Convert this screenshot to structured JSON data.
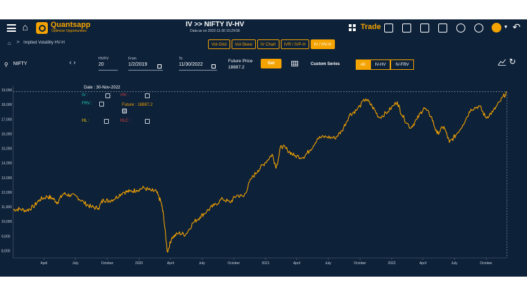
{
  "header": {
    "brand": "Quantsapp",
    "tagline": "Optimize Opportunities",
    "title": "IV >> NIFTY IV-HV",
    "subtitle": "Data as on 2022-11-30 15:29:58",
    "trade_label": "Trade"
  },
  "breadcrumb": {
    "label": "Implied Volatility HV-H"
  },
  "tabs": [
    "Vol-Grid",
    "Vol-Skew",
    "IV Chart",
    "IVR / IVP-H",
    "IV / HV-H"
  ],
  "active_tab": 4,
  "controls": {
    "symbol": "NIFTY",
    "hviv_label": "HV/FV",
    "hviv_value": "20",
    "from_label": "From",
    "from_value": "1/2/2019",
    "to_label": "To",
    "to_value": "11/30/2022",
    "future_price_label": "Future Price",
    "future_price_value": "18887.2",
    "get_label": "Get",
    "custom_series_label": "Custom Series",
    "series_buttons": [
      "All",
      "IV-HV",
      "IV-FRV"
    ],
    "active_series": 0
  },
  "tooltip": {
    "date": "Date : 30-Nov-2022",
    "iv": "IV :",
    "hv": "HV :",
    "frv": "FRV :",
    "future": "Future : 18887.2",
    "hl": "HL :",
    "hlc": "HLC :",
    "colors": {
      "iv": "#1fc7b0",
      "hv": "#e0403a",
      "frv": "#1fc7b0",
      "future": "#f5a300",
      "hl": "#f5d300",
      "hlc": "#e0403a"
    }
  },
  "chart_data": {
    "type": "line",
    "series": [
      {
        "name": "Future",
        "color": "#f5a300",
        "x": [
          "2019-01-02",
          "2019-01-20",
          "2019-02-10",
          "2019-03-01",
          "2019-03-20",
          "2019-04-10",
          "2019-04-25",
          "2019-05-10",
          "2019-05-27",
          "2019-06-15",
          "2019-07-05",
          "2019-07-25",
          "2019-08-15",
          "2019-09-05",
          "2019-09-20",
          "2019-10-05",
          "2019-10-25",
          "2019-11-15",
          "2019-12-05",
          "2019-12-25",
          "2020-01-15",
          "2020-02-05",
          "2020-02-20",
          "2020-03-05",
          "2020-03-12",
          "2020-03-23",
          "2020-04-05",
          "2020-04-25",
          "2020-05-15",
          "2020-06-05",
          "2020-06-25",
          "2020-07-15",
          "2020-08-05",
          "2020-08-30",
          "2020-09-20",
          "2020-10-10",
          "2020-10-30",
          "2020-11-20",
          "2020-12-10",
          "2020-12-30",
          "2021-01-20",
          "2021-02-01",
          "2021-02-15",
          "2021-03-05",
          "2021-03-25",
          "2021-04-20",
          "2021-05-10",
          "2021-06-01",
          "2021-06-25",
          "2021-07-20",
          "2021-08-10",
          "2021-09-01",
          "2021-09-20",
          "2021-10-18",
          "2021-11-05",
          "2021-11-26",
          "2021-12-20",
          "2022-01-17",
          "2022-01-30",
          "2022-02-24",
          "2022-03-15",
          "2022-04-04",
          "2022-04-25",
          "2022-05-12",
          "2022-06-01",
          "2022-06-17",
          "2022-07-05",
          "2022-07-25",
          "2022-08-18",
          "2022-09-12",
          "2022-09-30",
          "2022-10-20",
          "2022-11-10",
          "2022-11-30"
        ],
        "values": [
          10800,
          10850,
          10750,
          11000,
          11500,
          11700,
          11600,
          11300,
          11900,
          11800,
          11700,
          11300,
          11000,
          10900,
          11500,
          11400,
          11600,
          12000,
          12050,
          12150,
          12300,
          12100,
          12050,
          11300,
          10400,
          7900,
          8900,
          9200,
          9100,
          9900,
          10300,
          10700,
          11100,
          11550,
          11300,
          11800,
          11700,
          12900,
          13500,
          14000,
          14600,
          13700,
          15200,
          14900,
          14500,
          14400,
          14900,
          15700,
          15800,
          15700,
          16200,
          17300,
          17600,
          18400,
          17900,
          17100,
          17500,
          18200,
          17300,
          16400,
          17000,
          17800,
          17200,
          16000,
          16500,
          15400,
          15900,
          16600,
          17700,
          17900,
          17100,
          17500,
          18200,
          18887
        ]
      }
    ],
    "ylim": [
      7500,
      19100
    ],
    "yticks": [
      "8,000",
      "9,000",
      "10,000",
      "11,000",
      "12,000",
      "13,000",
      "14,000",
      "15,000",
      "16,000",
      "17,000",
      "18,000",
      "19,000"
    ],
    "xticks": [
      "April",
      "July",
      "October",
      "2020",
      "April",
      "July",
      "October",
      "2021",
      "April",
      "July",
      "October",
      "2022",
      "April",
      "July",
      "October"
    ],
    "grid": false
  }
}
